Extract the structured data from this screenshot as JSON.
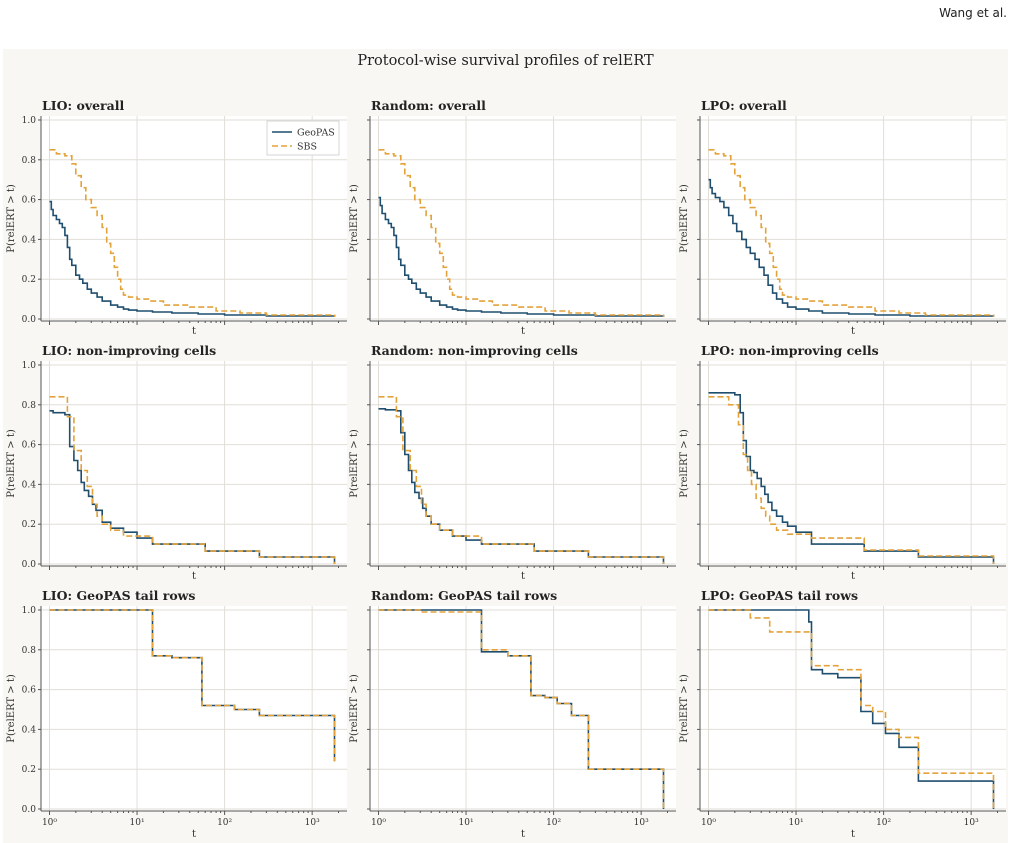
{
  "header": {
    "running_head": "Wang et al."
  },
  "figure": {
    "title": "Protocol-wise survival profiles of relERT"
  },
  "colors": {
    "geopas": "#1f4e6e",
    "sbs": "#e3a23a",
    "grid": "#e1ded7",
    "axes": "#555555",
    "background": "#f8f7f3"
  },
  "chart_data": [
    {
      "type": "line",
      "step": true,
      "title": "LIO: overall",
      "xlabel": "t",
      "ylabel": "P(relERT > t)",
      "xscale": "log",
      "xlim": [
        0.8,
        2500
      ],
      "ylim": [
        -0.01,
        1.02
      ],
      "grid": true,
      "legend": "top-right",
      "series": [
        {
          "name": "GeoPAS",
          "x": [
            1,
            1.05,
            1.1,
            1.2,
            1.3,
            1.4,
            1.5,
            1.6,
            1.7,
            1.8,
            2,
            2.2,
            2.4,
            2.7,
            3,
            3.5,
            4,
            5,
            6,
            7,
            8,
            10,
            15,
            25,
            50,
            100,
            300,
            1800
          ],
          "y": [
            0.59,
            0.55,
            0.52,
            0.5,
            0.48,
            0.46,
            0.42,
            0.36,
            0.3,
            0.27,
            0.22,
            0.2,
            0.18,
            0.15,
            0.13,
            0.11,
            0.09,
            0.07,
            0.06,
            0.05,
            0.045,
            0.04,
            0.035,
            0.03,
            0.025,
            0.02,
            0.015,
            0.01
          ]
        },
        {
          "name": "SBS",
          "x": [
            1,
            1.2,
            1.5,
            1.8,
            2,
            2.3,
            2.6,
            3,
            3.5,
            4,
            4.5,
            5,
            5.5,
            6,
            6.5,
            7,
            8,
            10,
            14,
            20,
            40,
            80,
            150,
            300,
            1800
          ],
          "y": [
            0.85,
            0.83,
            0.82,
            0.78,
            0.72,
            0.66,
            0.6,
            0.56,
            0.52,
            0.46,
            0.38,
            0.33,
            0.26,
            0.2,
            0.15,
            0.12,
            0.11,
            0.1,
            0.09,
            0.07,
            0.06,
            0.04,
            0.03,
            0.02,
            0.01
          ]
        }
      ]
    },
    {
      "type": "line",
      "step": true,
      "title": "Random: overall",
      "xlabel": "t",
      "ylabel": "P(relERT > t)",
      "xscale": "log",
      "xlim": [
        0.8,
        2500
      ],
      "ylim": [
        -0.01,
        1.02
      ],
      "grid": true,
      "series": [
        {
          "name": "GeoPAS",
          "x": [
            1,
            1.05,
            1.1,
            1.2,
            1.3,
            1.4,
            1.5,
            1.6,
            1.7,
            1.8,
            2,
            2.2,
            2.4,
            2.7,
            3,
            3.5,
            4,
            5,
            6,
            7,
            8,
            10,
            15,
            25,
            50,
            100,
            300,
            1800
          ],
          "y": [
            0.61,
            0.57,
            0.53,
            0.5,
            0.48,
            0.46,
            0.42,
            0.36,
            0.3,
            0.27,
            0.22,
            0.2,
            0.18,
            0.15,
            0.13,
            0.11,
            0.09,
            0.07,
            0.06,
            0.05,
            0.045,
            0.04,
            0.035,
            0.03,
            0.025,
            0.02,
            0.015,
            0.01
          ]
        },
        {
          "name": "SBS",
          "x": [
            1,
            1.2,
            1.5,
            1.8,
            2,
            2.3,
            2.6,
            3,
            3.5,
            4,
            4.5,
            5,
            5.5,
            6,
            6.5,
            7,
            8,
            10,
            14,
            20,
            40,
            80,
            150,
            300,
            1800
          ],
          "y": [
            0.85,
            0.83,
            0.82,
            0.78,
            0.72,
            0.66,
            0.6,
            0.56,
            0.52,
            0.46,
            0.38,
            0.33,
            0.26,
            0.2,
            0.15,
            0.12,
            0.11,
            0.1,
            0.09,
            0.07,
            0.06,
            0.04,
            0.03,
            0.02,
            0.01
          ]
        }
      ]
    },
    {
      "type": "line",
      "step": true,
      "title": "LPO: overall",
      "xlabel": "t",
      "ylabel": "P(relERT > t)",
      "xscale": "log",
      "xlim": [
        0.8,
        2500
      ],
      "ylim": [
        -0.01,
        1.02
      ],
      "grid": true,
      "series": [
        {
          "name": "GeoPAS",
          "x": [
            1,
            1.05,
            1.1,
            1.2,
            1.35,
            1.5,
            1.7,
            1.9,
            2.1,
            2.4,
            2.7,
            3,
            3.4,
            3.8,
            4.3,
            4.8,
            5.4,
            6,
            7,
            8,
            10,
            14,
            20,
            40,
            80,
            200,
            1800
          ],
          "y": [
            0.7,
            0.66,
            0.63,
            0.61,
            0.59,
            0.56,
            0.52,
            0.48,
            0.44,
            0.4,
            0.36,
            0.33,
            0.3,
            0.26,
            0.22,
            0.17,
            0.13,
            0.1,
            0.08,
            0.06,
            0.05,
            0.04,
            0.03,
            0.025,
            0.02,
            0.015,
            0.01
          ]
        },
        {
          "name": "SBS",
          "x": [
            1,
            1.2,
            1.5,
            1.8,
            2,
            2.3,
            2.6,
            3,
            3.5,
            4,
            4.5,
            5,
            5.5,
            6,
            6.5,
            7,
            8,
            10,
            14,
            20,
            40,
            80,
            150,
            300,
            1800
          ],
          "y": [
            0.85,
            0.83,
            0.82,
            0.78,
            0.72,
            0.66,
            0.6,
            0.56,
            0.52,
            0.46,
            0.38,
            0.33,
            0.26,
            0.2,
            0.15,
            0.12,
            0.11,
            0.1,
            0.09,
            0.07,
            0.06,
            0.04,
            0.03,
            0.02,
            0.01
          ]
        }
      ]
    },
    {
      "type": "line",
      "step": true,
      "title": "LIO: non-improving cells",
      "xlabel": "t",
      "ylabel": "P(relERT > t)",
      "xscale": "log",
      "xlim": [
        0.8,
        2500
      ],
      "ylim": [
        -0.01,
        1.02
      ],
      "grid": true,
      "series": [
        {
          "name": "GeoPAS",
          "x": [
            1,
            1.1,
            1.5,
            1.7,
            1.9,
            2.1,
            2.3,
            2.5,
            2.8,
            3.1,
            3.4,
            4,
            5,
            7,
            10,
            15,
            60,
            250,
            1800
          ],
          "y": [
            0.77,
            0.76,
            0.75,
            0.59,
            0.52,
            0.47,
            0.41,
            0.37,
            0.34,
            0.3,
            0.27,
            0.21,
            0.18,
            0.16,
            0.13,
            0.1,
            0.065,
            0.035,
            0.0
          ]
        },
        {
          "name": "SBS",
          "x": [
            1,
            1.6,
            1.9,
            2.3,
            2.7,
            3.1,
            3.5,
            4,
            5,
            7,
            15,
            60,
            250,
            1800
          ],
          "y": [
            0.84,
            0.74,
            0.57,
            0.47,
            0.39,
            0.3,
            0.24,
            0.2,
            0.17,
            0.14,
            0.1,
            0.065,
            0.035,
            0.0
          ]
        }
      ]
    },
    {
      "type": "line",
      "step": true,
      "title": "Random: non-improving cells",
      "xlabel": "t",
      "ylabel": "P(relERT > t)",
      "xscale": "log",
      "xlim": [
        0.8,
        2500
      ],
      "ylim": [
        -0.01,
        1.02
      ],
      "grid": true,
      "series": [
        {
          "name": "GeoPAS",
          "x": [
            1,
            1.2,
            1.6,
            1.8,
            2,
            2.2,
            2.4,
            2.6,
            2.9,
            3.2,
            3.5,
            4,
            5,
            7,
            10,
            15,
            60,
            250,
            1800
          ],
          "y": [
            0.78,
            0.775,
            0.77,
            0.66,
            0.55,
            0.47,
            0.41,
            0.36,
            0.33,
            0.28,
            0.24,
            0.2,
            0.17,
            0.14,
            0.12,
            0.1,
            0.065,
            0.035,
            0.0
          ]
        },
        {
          "name": "SBS",
          "x": [
            1,
            1.6,
            1.9,
            2.3,
            2.7,
            3.1,
            3.5,
            4,
            5,
            7,
            15,
            60,
            250,
            1800
          ],
          "y": [
            0.84,
            0.74,
            0.57,
            0.47,
            0.39,
            0.3,
            0.24,
            0.2,
            0.17,
            0.14,
            0.1,
            0.065,
            0.035,
            0.0
          ]
        }
      ]
    },
    {
      "type": "line",
      "step": true,
      "title": "LPO: non-improving cells",
      "xlabel": "t",
      "ylabel": "P(relERT > t)",
      "xscale": "log",
      "xlim": [
        0.8,
        2500
      ],
      "ylim": [
        -0.01,
        1.02
      ],
      "grid": true,
      "series": [
        {
          "name": "GeoPAS",
          "x": [
            1,
            2,
            2.3,
            2.5,
            2.7,
            3,
            3.3,
            3.6,
            4,
            4.4,
            4.8,
            5.3,
            6,
            7,
            8,
            10,
            15,
            60,
            250,
            1800
          ],
          "y": [
            0.86,
            0.85,
            0.76,
            0.62,
            0.54,
            0.47,
            0.46,
            0.43,
            0.39,
            0.35,
            0.31,
            0.27,
            0.24,
            0.21,
            0.19,
            0.16,
            0.1,
            0.065,
            0.035,
            0.0
          ]
        },
        {
          "name": "SBS",
          "x": [
            1,
            1.7,
            2.2,
            2.5,
            2.8,
            3.1,
            3.5,
            4,
            4.5,
            5,
            6,
            8,
            15,
            60,
            250,
            1800
          ],
          "y": [
            0.84,
            0.8,
            0.7,
            0.55,
            0.47,
            0.4,
            0.33,
            0.28,
            0.24,
            0.2,
            0.17,
            0.15,
            0.13,
            0.07,
            0.04,
            0.0
          ]
        }
      ]
    },
    {
      "type": "line",
      "step": true,
      "title": "LIO: GeoPAS tail rows",
      "xlabel": "t",
      "ylabel": "P(relERT > t)",
      "xscale": "log",
      "xlim": [
        0.8,
        2500
      ],
      "ylim": [
        -0.01,
        1.02
      ],
      "grid": true,
      "xticks": [
        "10⁰",
        "10¹",
        "10²",
        "10³"
      ],
      "series": [
        {
          "name": "GeoPAS",
          "x": [
            1,
            15,
            25,
            55,
            130,
            250,
            1800
          ],
          "y": [
            1.0,
            0.77,
            0.76,
            0.52,
            0.5,
            0.47,
            0.24
          ]
        },
        {
          "name": "SBS",
          "x": [
            1,
            15,
            25,
            55,
            130,
            250,
            1800
          ],
          "y": [
            1.0,
            0.77,
            0.76,
            0.52,
            0.5,
            0.47,
            0.24
          ]
        }
      ]
    },
    {
      "type": "line",
      "step": true,
      "title": "Random: GeoPAS tail rows",
      "xlabel": "t",
      "ylabel": "P(relERT > t)",
      "xscale": "log",
      "xlim": [
        0.8,
        2500
      ],
      "ylim": [
        -0.01,
        1.02
      ],
      "grid": true,
      "xticks": [
        "10⁰",
        "10¹",
        "10²",
        "10³"
      ],
      "series": [
        {
          "name": "GeoPAS",
          "x": [
            1,
            15,
            30,
            55,
            80,
            110,
            160,
            250,
            1800
          ],
          "y": [
            1.0,
            0.79,
            0.77,
            0.57,
            0.56,
            0.53,
            0.47,
            0.2,
            0.0
          ]
        },
        {
          "name": "SBS",
          "x": [
            1,
            3,
            15,
            30,
            55,
            80,
            110,
            160,
            250,
            1800
          ],
          "y": [
            1.0,
            0.99,
            0.8,
            0.77,
            0.57,
            0.56,
            0.53,
            0.47,
            0.2,
            0.0
          ]
        }
      ]
    },
    {
      "type": "line",
      "step": true,
      "title": "LPO: GeoPAS tail rows",
      "xlabel": "t",
      "ylabel": "P(relERT > t)",
      "xscale": "log",
      "xlim": [
        0.8,
        2500
      ],
      "ylim": [
        -0.01,
        1.02
      ],
      "grid": true,
      "xticks": [
        "10⁰",
        "10¹",
        "10²",
        "10³"
      ],
      "series": [
        {
          "name": "GeoPAS",
          "x": [
            1,
            14,
            15,
            20,
            30,
            55,
            75,
            105,
            150,
            250,
            1800
          ],
          "y": [
            1.0,
            0.94,
            0.7,
            0.68,
            0.66,
            0.49,
            0.43,
            0.38,
            0.31,
            0.14,
            0.0
          ]
        },
        {
          "name": "SBS",
          "x": [
            1,
            3,
            5,
            15,
            30,
            55,
            75,
            105,
            150,
            250,
            1800
          ],
          "y": [
            1.0,
            0.96,
            0.89,
            0.72,
            0.7,
            0.52,
            0.49,
            0.4,
            0.36,
            0.18,
            0.0
          ]
        }
      ]
    }
  ]
}
